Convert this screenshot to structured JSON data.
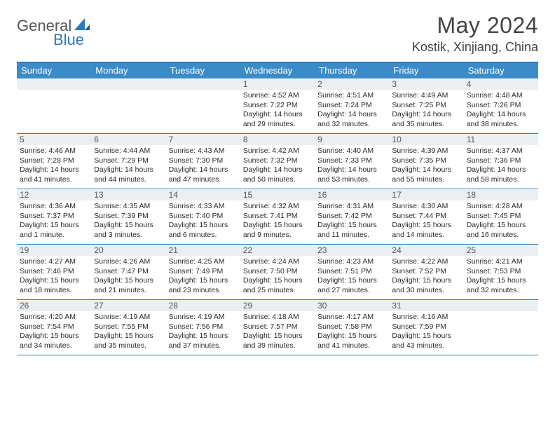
{
  "logo": {
    "word1": "General",
    "word2": "Blue"
  },
  "title": "May 2024",
  "location": "Kostik, Xinjiang, China",
  "colors": {
    "header_bar": "#3b8bc9",
    "header_border": "#2b7bbf",
    "daynum_bg": "#eceff1",
    "text": "#333333",
    "title": "#444444"
  },
  "fonts": {
    "title_size": 32,
    "location_size": 18,
    "header_size": 13,
    "cell_size": 10.5
  },
  "dayNames": [
    "Sunday",
    "Monday",
    "Tuesday",
    "Wednesday",
    "Thursday",
    "Friday",
    "Saturday"
  ],
  "weeks": [
    [
      {
        "n": "",
        "sr": "",
        "ss": "",
        "dl": ""
      },
      {
        "n": "",
        "sr": "",
        "ss": "",
        "dl": ""
      },
      {
        "n": "",
        "sr": "",
        "ss": "",
        "dl": ""
      },
      {
        "n": "1",
        "sr": "Sunrise: 4:52 AM",
        "ss": "Sunset: 7:22 PM",
        "dl": "Daylight: 14 hours and 29 minutes."
      },
      {
        "n": "2",
        "sr": "Sunrise: 4:51 AM",
        "ss": "Sunset: 7:24 PM",
        "dl": "Daylight: 14 hours and 32 minutes."
      },
      {
        "n": "3",
        "sr": "Sunrise: 4:49 AM",
        "ss": "Sunset: 7:25 PM",
        "dl": "Daylight: 14 hours and 35 minutes."
      },
      {
        "n": "4",
        "sr": "Sunrise: 4:48 AM",
        "ss": "Sunset: 7:26 PM",
        "dl": "Daylight: 14 hours and 38 minutes."
      }
    ],
    [
      {
        "n": "5",
        "sr": "Sunrise: 4:46 AM",
        "ss": "Sunset: 7:28 PM",
        "dl": "Daylight: 14 hours and 41 minutes."
      },
      {
        "n": "6",
        "sr": "Sunrise: 4:44 AM",
        "ss": "Sunset: 7:29 PM",
        "dl": "Daylight: 14 hours and 44 minutes."
      },
      {
        "n": "7",
        "sr": "Sunrise: 4:43 AM",
        "ss": "Sunset: 7:30 PM",
        "dl": "Daylight: 14 hours and 47 minutes."
      },
      {
        "n": "8",
        "sr": "Sunrise: 4:42 AM",
        "ss": "Sunset: 7:32 PM",
        "dl": "Daylight: 14 hours and 50 minutes."
      },
      {
        "n": "9",
        "sr": "Sunrise: 4:40 AM",
        "ss": "Sunset: 7:33 PM",
        "dl": "Daylight: 14 hours and 53 minutes."
      },
      {
        "n": "10",
        "sr": "Sunrise: 4:39 AM",
        "ss": "Sunset: 7:35 PM",
        "dl": "Daylight: 14 hours and 55 minutes."
      },
      {
        "n": "11",
        "sr": "Sunrise: 4:37 AM",
        "ss": "Sunset: 7:36 PM",
        "dl": "Daylight: 14 hours and 58 minutes."
      }
    ],
    [
      {
        "n": "12",
        "sr": "Sunrise: 4:36 AM",
        "ss": "Sunset: 7:37 PM",
        "dl": "Daylight: 15 hours and 1 minute."
      },
      {
        "n": "13",
        "sr": "Sunrise: 4:35 AM",
        "ss": "Sunset: 7:39 PM",
        "dl": "Daylight: 15 hours and 3 minutes."
      },
      {
        "n": "14",
        "sr": "Sunrise: 4:33 AM",
        "ss": "Sunset: 7:40 PM",
        "dl": "Daylight: 15 hours and 6 minutes."
      },
      {
        "n": "15",
        "sr": "Sunrise: 4:32 AM",
        "ss": "Sunset: 7:41 PM",
        "dl": "Daylight: 15 hours and 9 minutes."
      },
      {
        "n": "16",
        "sr": "Sunrise: 4:31 AM",
        "ss": "Sunset: 7:42 PM",
        "dl": "Daylight: 15 hours and 11 minutes."
      },
      {
        "n": "17",
        "sr": "Sunrise: 4:30 AM",
        "ss": "Sunset: 7:44 PM",
        "dl": "Daylight: 15 hours and 14 minutes."
      },
      {
        "n": "18",
        "sr": "Sunrise: 4:28 AM",
        "ss": "Sunset: 7:45 PM",
        "dl": "Daylight: 15 hours and 16 minutes."
      }
    ],
    [
      {
        "n": "19",
        "sr": "Sunrise: 4:27 AM",
        "ss": "Sunset: 7:46 PM",
        "dl": "Daylight: 15 hours and 18 minutes."
      },
      {
        "n": "20",
        "sr": "Sunrise: 4:26 AM",
        "ss": "Sunset: 7:47 PM",
        "dl": "Daylight: 15 hours and 21 minutes."
      },
      {
        "n": "21",
        "sr": "Sunrise: 4:25 AM",
        "ss": "Sunset: 7:49 PM",
        "dl": "Daylight: 15 hours and 23 minutes."
      },
      {
        "n": "22",
        "sr": "Sunrise: 4:24 AM",
        "ss": "Sunset: 7:50 PM",
        "dl": "Daylight: 15 hours and 25 minutes."
      },
      {
        "n": "23",
        "sr": "Sunrise: 4:23 AM",
        "ss": "Sunset: 7:51 PM",
        "dl": "Daylight: 15 hours and 27 minutes."
      },
      {
        "n": "24",
        "sr": "Sunrise: 4:22 AM",
        "ss": "Sunset: 7:52 PM",
        "dl": "Daylight: 15 hours and 30 minutes."
      },
      {
        "n": "25",
        "sr": "Sunrise: 4:21 AM",
        "ss": "Sunset: 7:53 PM",
        "dl": "Daylight: 15 hours and 32 minutes."
      }
    ],
    [
      {
        "n": "26",
        "sr": "Sunrise: 4:20 AM",
        "ss": "Sunset: 7:54 PM",
        "dl": "Daylight: 15 hours and 34 minutes."
      },
      {
        "n": "27",
        "sr": "Sunrise: 4:19 AM",
        "ss": "Sunset: 7:55 PM",
        "dl": "Daylight: 15 hours and 35 minutes."
      },
      {
        "n": "28",
        "sr": "Sunrise: 4:19 AM",
        "ss": "Sunset: 7:56 PM",
        "dl": "Daylight: 15 hours and 37 minutes."
      },
      {
        "n": "29",
        "sr": "Sunrise: 4:18 AM",
        "ss": "Sunset: 7:57 PM",
        "dl": "Daylight: 15 hours and 39 minutes."
      },
      {
        "n": "30",
        "sr": "Sunrise: 4:17 AM",
        "ss": "Sunset: 7:58 PM",
        "dl": "Daylight: 15 hours and 41 minutes."
      },
      {
        "n": "31",
        "sr": "Sunrise: 4:16 AM",
        "ss": "Sunset: 7:59 PM",
        "dl": "Daylight: 15 hours and 43 minutes."
      },
      {
        "n": "",
        "sr": "",
        "ss": "",
        "dl": ""
      }
    ]
  ]
}
